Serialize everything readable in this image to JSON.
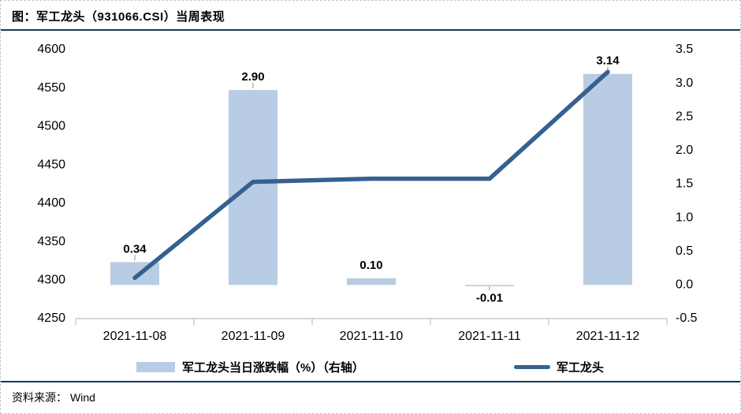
{
  "header": {
    "title": "图：军工龙头（931066.CSI）当周表现"
  },
  "footer": {
    "label": "资料来源：",
    "source": "Wind"
  },
  "legend": {
    "bar_label": "军工龙头当日涨跌幅（%）（右轴）",
    "line_label": "军工龙头"
  },
  "colors": {
    "bar_fill": "#B8CCE4",
    "line": "#35618F",
    "data_label": "#FF0000",
    "axis": "#BFBFBF",
    "leader": "#A6A6A6",
    "rule": "#17375E"
  },
  "chart_data": {
    "type": "bar",
    "subtype": "bar-line-combo",
    "title": "图：军工龙头（931066.CSI）当周表现",
    "categories": [
      "2021-11-08",
      "2021-11-09",
      "2021-11-10",
      "2021-11-11",
      "2021-11-12"
    ],
    "series": [
      {
        "name": "军工龙头当日涨跌幅（%）（右轴）",
        "type": "bar",
        "axis": "right",
        "values": [
          0.34,
          2.9,
          0.1,
          -0.01,
          3.14
        ],
        "labels": [
          "0.34",
          "2.90",
          "0.10",
          "-0.01",
          "3.14"
        ]
      },
      {
        "name": "军工龙头",
        "type": "line",
        "axis": "left",
        "values": [
          4303,
          4428,
          4432,
          4432,
          4571
        ]
      }
    ],
    "left_axis": {
      "min": 4250,
      "max": 4600,
      "ticks": [
        "4600",
        "4550",
        "4500",
        "4450",
        "4400",
        "4350",
        "4300",
        "4250"
      ]
    },
    "right_axis": {
      "min": -0.5,
      "max": 3.5,
      "ticks": [
        "3.5",
        "3.0",
        "2.5",
        "2.0",
        "1.5",
        "1.0",
        "0.5",
        "0.0",
        "-0.5"
      ]
    },
    "grid": false,
    "legend_position": "bottom"
  }
}
